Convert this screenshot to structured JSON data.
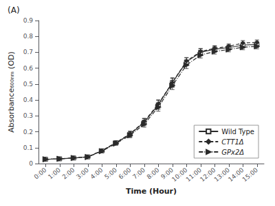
{
  "chart_data": {
    "type": "line",
    "title": "(A)",
    "xlabel": "Time (Hour)",
    "ylabel": "Absorbance₆₀₀ₙₘ (OD)",
    "x": [
      0,
      1,
      2,
      3,
      4,
      5,
      6,
      7,
      8,
      9,
      10,
      11,
      12,
      13,
      14,
      15
    ],
    "xlim": [
      -0.5,
      15.5
    ],
    "xticks": [
      {
        "value": 0,
        "label": "0:00"
      },
      {
        "value": 1,
        "label": "1:00"
      },
      {
        "value": 2,
        "label": "2:00"
      },
      {
        "value": 3,
        "label": "3:00"
      },
      {
        "value": 4,
        "label": "4:00"
      },
      {
        "value": 5,
        "label": "5:00"
      },
      {
        "value": 6,
        "label": "6:00"
      },
      {
        "value": 7,
        "label": "7:00"
      },
      {
        "value": 8,
        "label": "8:00"
      },
      {
        "value": 9,
        "label": "9:00"
      },
      {
        "value": 10,
        "label": "10:00"
      },
      {
        "value": 11,
        "label": "11:00"
      },
      {
        "value": 12,
        "label": "12:00"
      },
      {
        "value": 13,
        "label": "13:00"
      },
      {
        "value": 14,
        "label": "14:00"
      },
      {
        "value": 15,
        "label": "15:00"
      }
    ],
    "ylim": [
      0,
      0.9
    ],
    "yticks": [
      0,
      0.1,
      0.2,
      0.3,
      0.4,
      0.5,
      0.6,
      0.7,
      0.8,
      0.9
    ],
    "grid": false,
    "legend": "lower right",
    "series": [
      {
        "name": "Wild Type",
        "color": "#2a2a2a",
        "marker": "open_square",
        "line_style": "solid",
        "values": [
          0.027,
          0.03,
          0.035,
          0.042,
          0.08,
          0.13,
          0.185,
          0.26,
          0.37,
          0.51,
          0.64,
          0.7,
          0.72,
          0.73,
          0.745,
          0.75
        ],
        "errors": [
          0.003,
          0.003,
          0.004,
          0.005,
          0.008,
          0.012,
          0.018,
          0.022,
          0.028,
          0.03,
          0.025,
          0.022,
          0.02,
          0.018,
          0.02,
          0.02
        ]
      },
      {
        "name": "CTT1Δ",
        "color": "#2a2a2a",
        "marker": "diamond",
        "line_style": "dashed",
        "values": [
          0.027,
          0.03,
          0.036,
          0.043,
          0.082,
          0.132,
          0.188,
          0.265,
          0.375,
          0.51,
          0.645,
          0.705,
          0.725,
          0.738,
          0.758,
          0.762
        ],
        "errors": [
          0.003,
          0.003,
          0.004,
          0.005,
          0.007,
          0.011,
          0.016,
          0.02,
          0.026,
          0.025,
          0.022,
          0.019,
          0.016,
          0.015,
          0.016,
          0.016
        ]
      },
      {
        "name": "GPx2Δ",
        "color": "#2a2a2a",
        "marker": "triangle_right",
        "line_style": "dashdot",
        "values": [
          0.027,
          0.03,
          0.035,
          0.041,
          0.078,
          0.126,
          0.178,
          0.248,
          0.355,
          0.49,
          0.62,
          0.682,
          0.705,
          0.718,
          0.732,
          0.738
        ],
        "errors": [
          0.003,
          0.003,
          0.004,
          0.005,
          0.007,
          0.01,
          0.015,
          0.019,
          0.025,
          0.024,
          0.022,
          0.018,
          0.016,
          0.015,
          0.016,
          0.016
        ]
      }
    ]
  }
}
